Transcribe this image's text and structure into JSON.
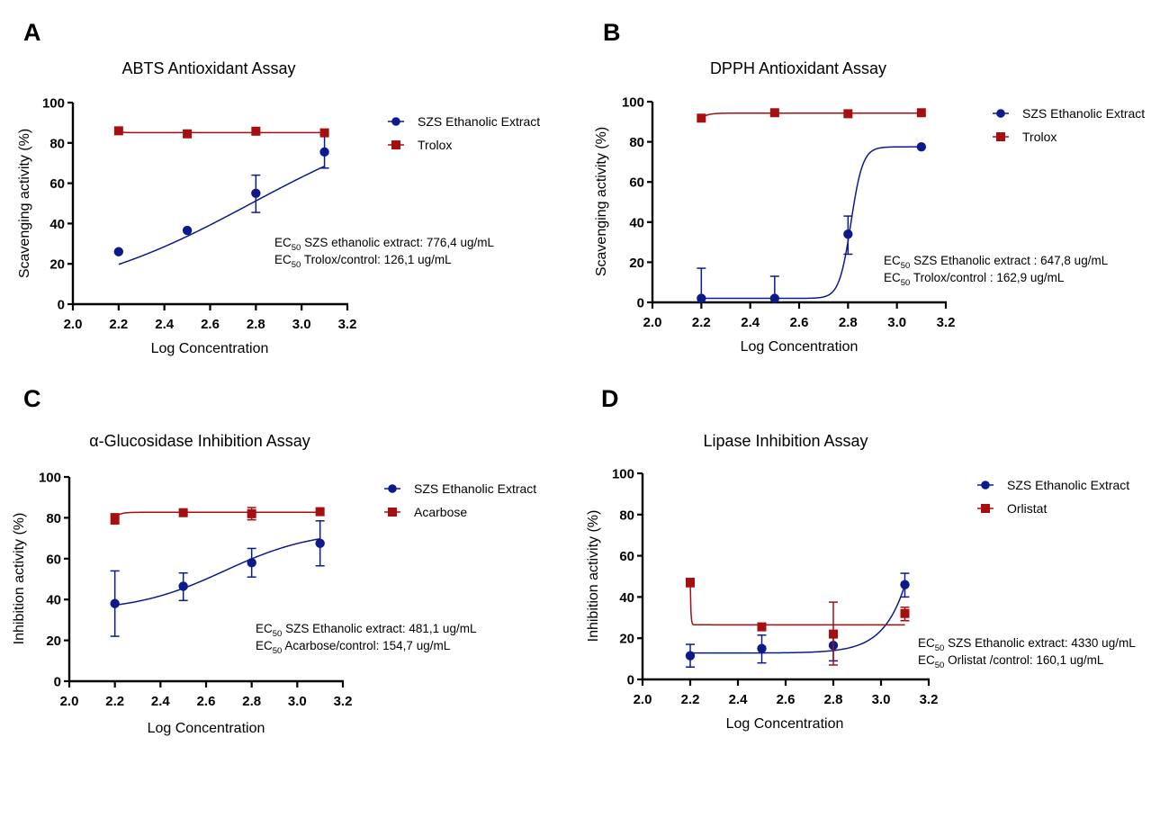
{
  "colors": {
    "extract": "#0d1a8a",
    "control": "#a50f10",
    "axis": "#000000"
  },
  "chart_data": [
    {
      "panel": "A",
      "type": "line",
      "title": "ABTS Antioxidant Assay",
      "xlabel": "Log Concentration",
      "ylabel": "Scavenging activity (%)",
      "xlim": [
        2.0,
        3.2
      ],
      "ylim": [
        0,
        100
      ],
      "xticks": [
        "2.0",
        "2.2",
        "2.4",
        "2.6",
        "2.8",
        "3.0",
        "3.2"
      ],
      "yticks": [
        "0",
        "20",
        "40",
        "60",
        "80",
        "100"
      ],
      "grid": false,
      "legend_position": "top-right",
      "annotations": [
        {
          "prefix": "EC",
          "sub": "50",
          "text": " SZS ethanolic extract: 776,4 ug/mL"
        },
        {
          "prefix": "EC",
          "sub": "50",
          "text": " Trolox/control: 126,1 ug/mL"
        }
      ],
      "series": [
        {
          "name": "SZS Ethanolic Extract",
          "marker": "circle",
          "color_key": "extract",
          "x": [
            2.2,
            2.5,
            2.8,
            3.1
          ],
          "y": [
            26,
            36.6,
            55,
            75.5
          ],
          "err_low": [
            null,
            null,
            45.5,
            67.5
          ],
          "err_high": [
            null,
            null,
            64,
            84
          ],
          "fit": "sigmoid",
          "fit_params": {
            "bottom": 0,
            "top": 100,
            "ec50": 2.78,
            "hill": 1.05
          }
        },
        {
          "name": "Trolox",
          "marker": "square",
          "color_key": "control",
          "x": [
            2.2,
            2.5,
            2.8,
            3.1
          ],
          "y": [
            86,
            84.5,
            85.8,
            85
          ],
          "err_low": [
            null,
            null,
            null,
            null
          ],
          "err_high": [
            null,
            null,
            null,
            null
          ],
          "fit": "flat",
          "fit_params": {
            "start": 85.6,
            "level": 85.1
          }
        }
      ]
    },
    {
      "panel": "B",
      "type": "line",
      "title": "DPPH Antioxidant Assay",
      "xlabel": "Log Concentration",
      "ylabel": "Scavenging activity (%)",
      "xlim": [
        2.0,
        3.2
      ],
      "ylim": [
        0,
        100
      ],
      "xticks": [
        "2.0",
        "2.2",
        "2.4",
        "2.6",
        "2.8",
        "3.0",
        "3.2"
      ],
      "yticks": [
        "0",
        "20",
        "40",
        "60",
        "80",
        "100"
      ],
      "grid": false,
      "legend_position": "top-right",
      "annotations": [
        {
          "prefix": "EC",
          "sub": "50",
          "text": " SZS Ethanolic extract : 647,8 ug/mL"
        },
        {
          "prefix": "EC",
          "sub": "50",
          "text": " Trolox/control : 162,9 ug/mL"
        }
      ],
      "series": [
        {
          "name": "SZS Ethanolic Extract",
          "marker": "circle",
          "color_key": "extract",
          "x": [
            2.2,
            2.5,
            2.8,
            3.1
          ],
          "y": [
            2,
            2,
            34,
            77.5
          ],
          "err_low": [
            null,
            null,
            24,
            null
          ],
          "err_high": [
            17,
            13,
            43,
            null
          ],
          "fit": "sigmoid",
          "fit_params": {
            "bottom": 2,
            "top": 77.5,
            "ec50": 2.812,
            "hill": 18
          }
        },
        {
          "name": "Trolox",
          "marker": "square",
          "color_key": "control",
          "x": [
            2.2,
            2.5,
            2.8,
            3.1
          ],
          "y": [
            91.8,
            94.5,
            94,
            94.5
          ],
          "err_low": [
            null,
            null,
            null,
            null
          ],
          "err_high": [
            null,
            null,
            null,
            null
          ],
          "fit": "rise",
          "fit_params": {
            "start": 91.8,
            "level": 94.3,
            "rate": 40
          }
        }
      ]
    },
    {
      "panel": "C",
      "type": "line",
      "title": "α-Glucosidase Inhibition Assay",
      "xlabel": "Log Concentration",
      "ylabel": "Inhibition activity (%)",
      "xlim": [
        2.0,
        3.2
      ],
      "ylim": [
        0,
        100
      ],
      "xticks": [
        "2.0",
        "2.2",
        "2.4",
        "2.6",
        "2.8",
        "3.0",
        "3.2"
      ],
      "yticks": [
        "0",
        "20",
        "40",
        "60",
        "80",
        "100"
      ],
      "grid": false,
      "legend_position": "top-right",
      "annotations": [
        {
          "prefix": "EC",
          "sub": "50",
          "text": " SZS Ethanolic extract: 481,1 ug/mL"
        },
        {
          "prefix": "EC",
          "sub": "50",
          "text": " Acarbose/control: 154,7 ug/mL"
        }
      ],
      "series": [
        {
          "name": "SZS Ethanolic Extract",
          "marker": "circle",
          "color_key": "extract",
          "x": [
            2.2,
            2.5,
            2.8,
            3.1
          ],
          "y": [
            38,
            46.5,
            58,
            67.5
          ],
          "err_low": [
            22,
            39.5,
            51,
            56.5
          ],
          "err_high": [
            54,
            53,
            65,
            78.5
          ],
          "fit": "sigmoid",
          "fit_params": {
            "bottom": 34,
            "top": 74,
            "ec50": 2.68,
            "hill": 2.2
          }
        },
        {
          "name": "Acarbose",
          "marker": "square",
          "color_key": "control",
          "x": [
            2.2,
            2.5,
            2.8,
            3.1
          ],
          "y": [
            79.5,
            82.5,
            82,
            83
          ],
          "err_low": [
            77,
            null,
            79,
            null
          ],
          "err_high": [
            82,
            null,
            85,
            null
          ],
          "fit": "rise",
          "fit_params": {
            "start": 80.2,
            "level": 82.7,
            "rate": 45
          }
        }
      ]
    },
    {
      "panel": "D",
      "type": "line",
      "title": "Lipase Inhibition Assay",
      "xlabel": "Log Concentration",
      "ylabel": "Inhibition activity (%)",
      "xlim": [
        2.0,
        3.2
      ],
      "ylim": [
        0,
        100
      ],
      "xticks": [
        "2.0",
        "2.2",
        "2.4",
        "2.6",
        "2.8",
        "3.0",
        "3.2"
      ],
      "yticks": [
        "0",
        "20",
        "40",
        "60",
        "80",
        "100"
      ],
      "grid": false,
      "legend_position": "top-right",
      "annotations": [
        {
          "prefix": "EC",
          "sub": "50",
          "text": " SZS Ethanolic extract: 4330 ug/mL"
        },
        {
          "prefix": "EC",
          "sub": "50",
          "text": " Orlistat /control: 160,1  ug/mL"
        }
      ],
      "series": [
        {
          "name": "SZS Ethanolic Extract",
          "marker": "circle",
          "color_key": "extract",
          "x": [
            2.2,
            2.5,
            2.8,
            3.1
          ],
          "y": [
            11.5,
            15,
            16.5,
            46
          ],
          "err_low": [
            6,
            8,
            9,
            40
          ],
          "err_high": [
            17,
            21.5,
            23,
            51.5
          ],
          "fit": "exp",
          "fit_params": {
            "base": 12.8,
            "scale": 33,
            "rate": 11,
            "x0": 3.1
          }
        },
        {
          "name": "Orlistat",
          "marker": "square",
          "color_key": "control",
          "x": [
            2.2,
            2.5,
            2.8,
            3.1
          ],
          "y": [
            47,
            25.5,
            22,
            32
          ],
          "err_low": [
            45,
            null,
            7,
            28.5
          ],
          "err_high": [
            49,
            null,
            37.5,
            35
          ],
          "fit": "drop",
          "fit_params": {
            "start": 47,
            "level": 26.5,
            "rate": 400
          }
        }
      ]
    }
  ]
}
